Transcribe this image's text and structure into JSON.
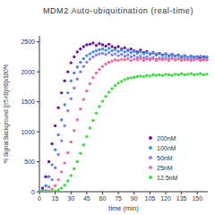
{
  "chart_data": {
    "type": "scatter",
    "title": "MDM2 Auto-ubiquitination (real-time)",
    "x_label": "time (min)",
    "y_label": "% Signal:Background [(r5-rB)/rB]x100%",
    "xlim": [
      0,
      160
    ],
    "xticks": [
      0,
      15,
      30,
      45,
      60,
      75,
      90,
      105,
      120,
      135,
      150
    ],
    "ylim": [
      0,
      2600
    ],
    "yticks": [
      0,
      500,
      1000,
      1500,
      2000,
      2500
    ],
    "legend": "lower right",
    "grid": false,
    "marker": "circle",
    "x": [
      0,
      3,
      6,
      9,
      12,
      15,
      18,
      21,
      24,
      27,
      30,
      33,
      36,
      39,
      42,
      45,
      48,
      51,
      54,
      57,
      60,
      63,
      66,
      69,
      72,
      75,
      78,
      81,
      84,
      87,
      90,
      93,
      96,
      99,
      102,
      105,
      108,
      111,
      114,
      117,
      120,
      123,
      126,
      129,
      132,
      135,
      138,
      141,
      144,
      147,
      150,
      153,
      156,
      159
    ],
    "series": [
      {
        "name": "200nM",
        "color": "#6a1b9a",
        "values": [
          0,
          60,
          250,
          500,
          800,
          1100,
          1400,
          1650,
          1850,
          2000,
          2150,
          2250,
          2330,
          2380,
          2420,
          2450,
          2460,
          2480,
          2440,
          2470,
          2450,
          2430,
          2460,
          2420,
          2400,
          2420,
          2380,
          2400,
          2360,
          2380,
          2350,
          2330,
          2360,
          2320,
          2340,
          2300,
          2320,
          2290,
          2310,
          2280,
          2300,
          2270,
          2290,
          2260,
          2280,
          2250,
          2270,
          2240,
          2260,
          2240,
          2250,
          2230,
          2250,
          2240
        ]
      },
      {
        "name": "100nM",
        "color": "#3f8fdc",
        "values": [
          0,
          20,
          100,
          250,
          450,
          700,
          950,
          1200,
          1450,
          1650,
          1850,
          1980,
          2080,
          2160,
          2220,
          2270,
          2300,
          2330,
          2350,
          2370,
          2380,
          2360,
          2390,
          2350,
          2370,
          2340,
          2360,
          2330,
          2350,
          2320,
          2340,
          2310,
          2330,
          2300,
          2320,
          2290,
          2310,
          2280,
          2300,
          2270,
          2290,
          2260,
          2280,
          2260,
          2270,
          2250,
          2270,
          2240,
          2260,
          2250,
          2240,
          2260,
          2230,
          2250
        ]
      },
      {
        "name": "50nM",
        "color": "#8c7cf2",
        "values": [
          0,
          0,
          20,
          80,
          200,
          400,
          620,
          850,
          1100,
          1350,
          1550,
          1730,
          1880,
          2000,
          2090,
          2160,
          2210,
          2250,
          2280,
          2300,
          2310,
          2290,
          2320,
          2280,
          2300,
          2270,
          2290,
          2260,
          2280,
          2250,
          2270,
          2240,
          2260,
          2230,
          2250,
          2220,
          2240,
          2210,
          2230,
          2220,
          2240,
          2210,
          2230,
          2200,
          2220,
          2210,
          2230,
          2200,
          2220,
          2210,
          2220,
          2200,
          2210,
          2200
        ]
      },
      {
        "name": "25nM",
        "color": "#f06e92",
        "values": [
          0,
          0,
          0,
          10,
          40,
          100,
          200,
          330,
          480,
          650,
          830,
          1020,
          1200,
          1380,
          1540,
          1680,
          1800,
          1900,
          1980,
          2040,
          2090,
          2130,
          2160,
          2180,
          2200,
          2190,
          2210,
          2200,
          2220,
          2190,
          2210,
          2200,
          2220,
          2190,
          2210,
          2200,
          2220,
          2190,
          2210,
          2200,
          2210,
          2190,
          2220,
          2200,
          2210,
          2190,
          2200,
          2210,
          2190,
          2200,
          2210,
          2190,
          2200,
          2200
        ]
      },
      {
        "name": "12.5nM",
        "color": "#3ddc3d",
        "values": [
          0,
          0,
          0,
          0,
          0,
          10,
          30,
          60,
          110,
          180,
          270,
          380,
          500,
          640,
          780,
          920,
          1060,
          1190,
          1310,
          1420,
          1510,
          1590,
          1660,
          1720,
          1770,
          1810,
          1840,
          1870,
          1890,
          1900,
          1910,
          1920,
          1930,
          1920,
          1940,
          1930,
          1950,
          1940,
          1950,
          1940,
          1960,
          1950,
          1940,
          1960,
          1950,
          1970,
          1950,
          1960,
          1970,
          1950,
          1960,
          1970,
          1950,
          1960
        ]
      }
    ]
  }
}
